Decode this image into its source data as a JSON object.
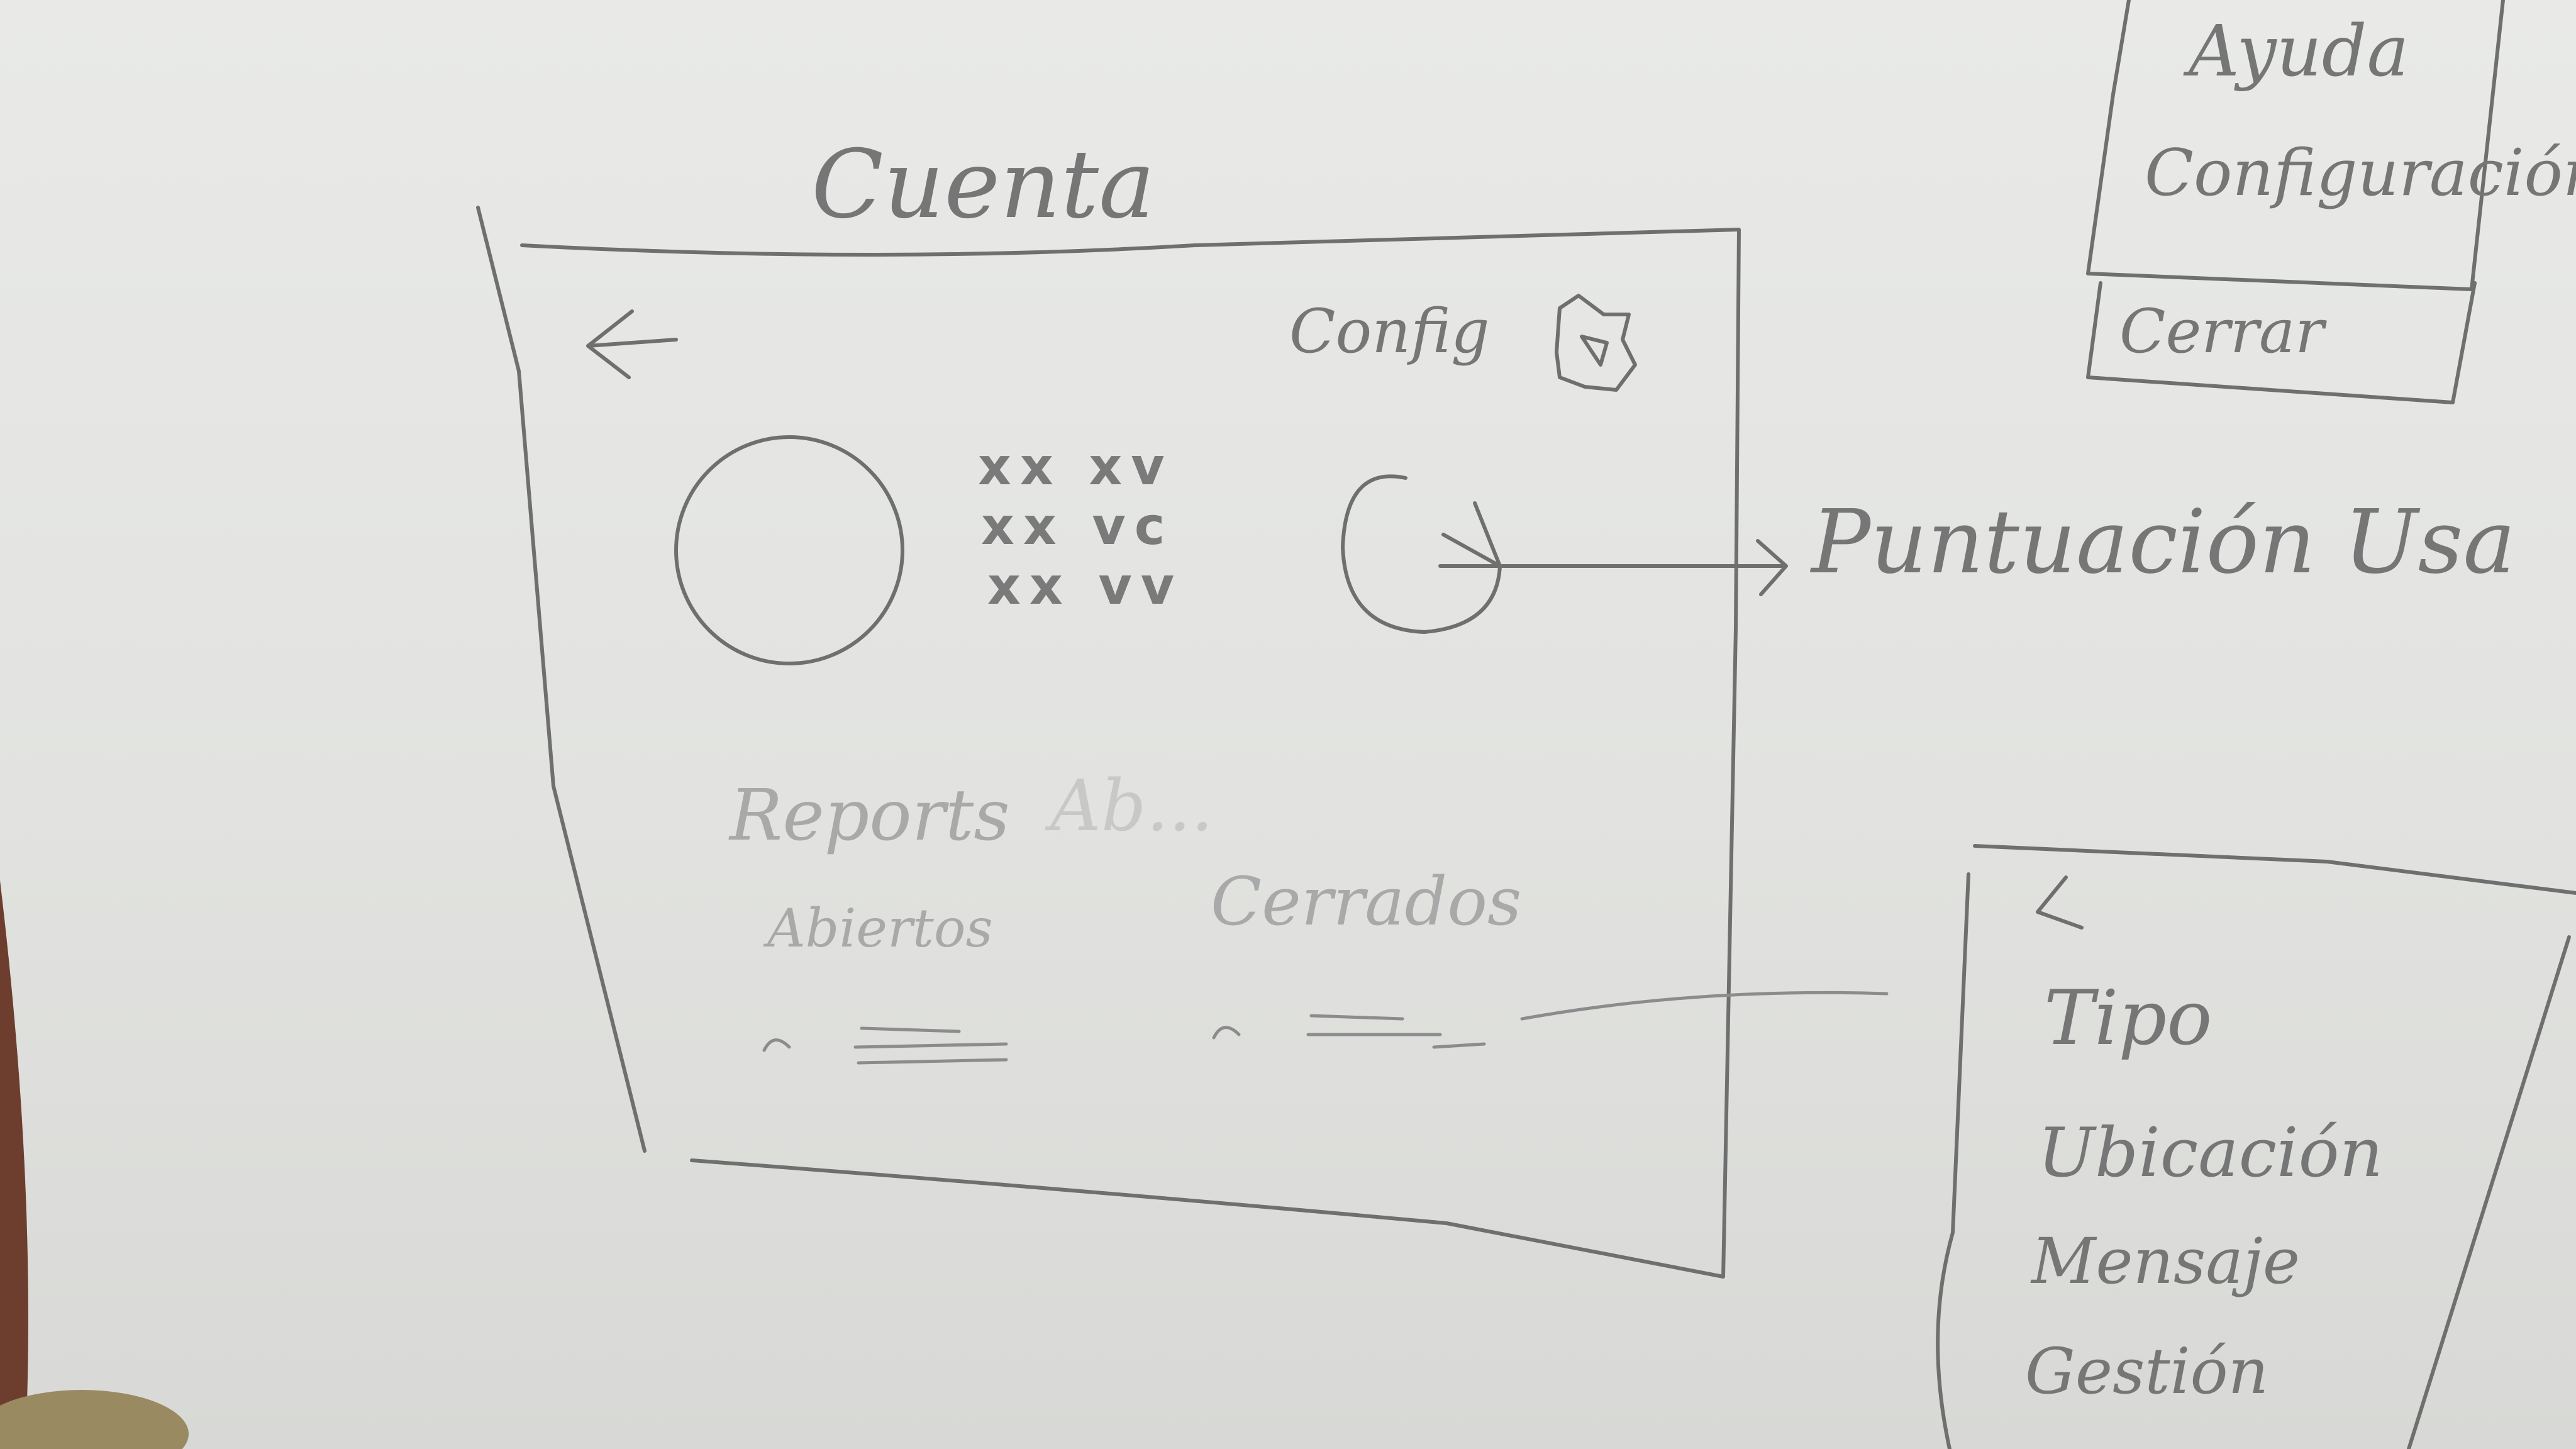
{
  "main_screen": {
    "title": "Cuenta",
    "config_label": "Config",
    "stats_marks": [
      "xx xv",
      "xx vc",
      "xx vv"
    ],
    "reports_label": "Reports",
    "reports_faded": "Ab...",
    "abiertos_label": "Abiertos",
    "cerrados_label": "Cerrados"
  },
  "annotation": {
    "arrow_label": "Puntuación Usa"
  },
  "menu_popup": {
    "items": [
      "Ayuda",
      "Configuración"
    ],
    "footer": "Cerrar"
  },
  "detail_panel": {
    "fields": [
      "Tipo",
      "Ubicación",
      "Mensaje",
      "Gestión"
    ]
  }
}
